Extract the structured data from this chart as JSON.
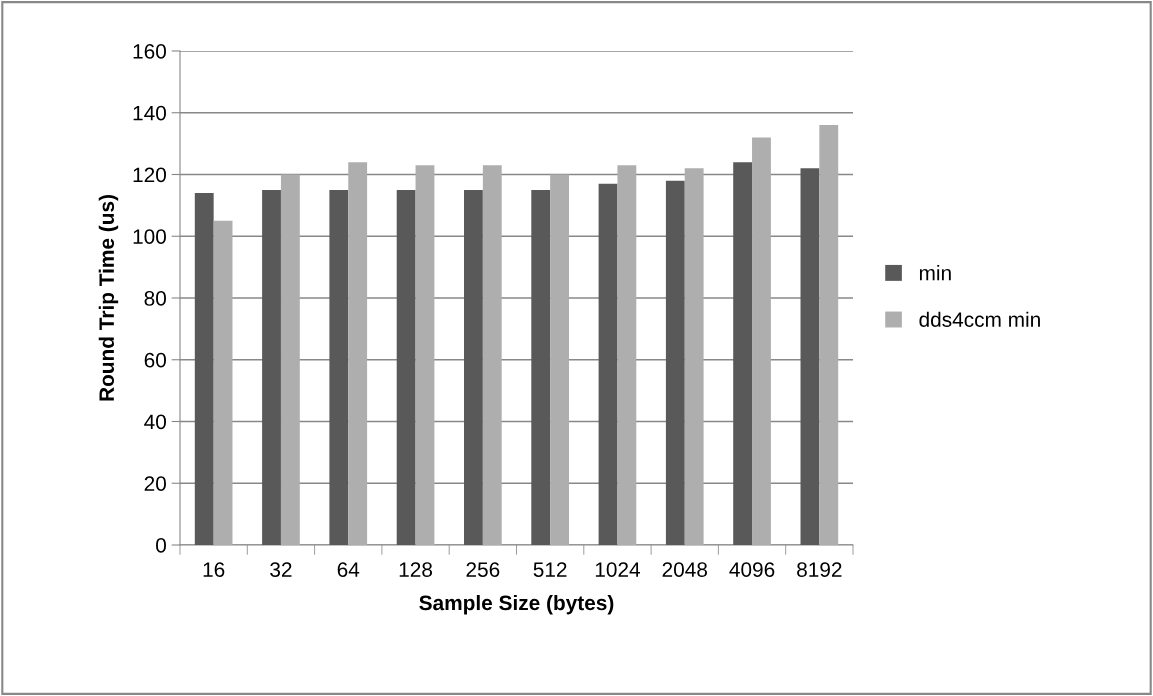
{
  "chart_data": {
    "type": "bar",
    "xlabel": "Sample Size (bytes)",
    "ylabel": "Round Trip Time (us)",
    "categories": [
      "16",
      "32",
      "64",
      "128",
      "256",
      "512",
      "1024",
      "2048",
      "4096",
      "8192"
    ],
    "series": [
      {
        "name": "min",
        "color": "#595959",
        "values": [
          114,
          115,
          115,
          115,
          115,
          115,
          117,
          118,
          124,
          122
        ]
      },
      {
        "name": "dds4ccm min",
        "color": "#aeaeae",
        "values": [
          105,
          120,
          124,
          123,
          123,
          120,
          123,
          122,
          132,
          136
        ]
      }
    ],
    "ylim": [
      0,
      160
    ],
    "yticks": [
      0,
      20,
      40,
      60,
      80,
      100,
      120,
      140,
      160
    ],
    "grid": "y",
    "legend": "right"
  }
}
